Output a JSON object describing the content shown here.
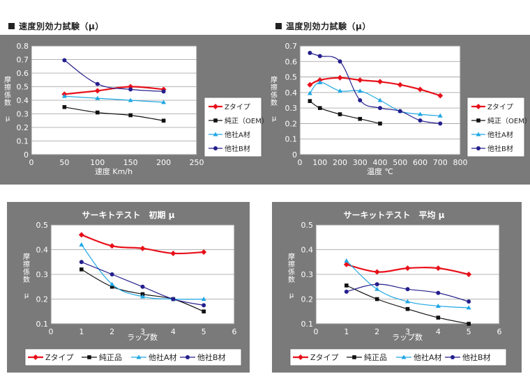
{
  "headers": {
    "speed": "速度別効力試験（μ）",
    "temp": "温度別効力試験（μ）"
  },
  "colors": {
    "z": "#e8101a",
    "oem": "#111111",
    "a": "#1fa7e3",
    "b": "#241f8c",
    "panel_bg": "#7a7a7a",
    "axis_text": "#ffffff"
  },
  "chart_data": [
    {
      "id": "speed",
      "type": "line",
      "title": "",
      "xlabel": "速度 Km/h",
      "ylabel": [
        "摩",
        "擦",
        "係",
        "数",
        "",
        "μ"
      ],
      "xlim": [
        0,
        250
      ],
      "ylim": [
        0,
        0.8
      ],
      "xticks": [
        0,
        50,
        100,
        150,
        200,
        250
      ],
      "yticks": [
        0,
        0.1,
        0.2,
        0.3,
        0.4,
        0.5,
        0.6,
        0.7,
        0.8
      ],
      "xtick_labels": [
        "0",
        "50",
        "100",
        "150",
        "200",
        "250"
      ],
      "ytick_labels": [
        "0",
        "0.1",
        "0.2",
        "0.3",
        "0.4",
        "0.5",
        "0.6",
        "0.7",
        "0.8"
      ],
      "legend_position": "right",
      "series": [
        {
          "key": "z",
          "name": "Zタイプ",
          "x": [
            50,
            100,
            150,
            200
          ],
          "values": [
            0.445,
            0.47,
            0.5,
            0.48
          ]
        },
        {
          "key": "oem",
          "name": "純正（OEM）",
          "x": [
            50,
            100,
            150,
            200
          ],
          "values": [
            0.35,
            0.31,
            0.29,
            0.25
          ]
        },
        {
          "key": "a",
          "name": "他社A材",
          "x": [
            50,
            100,
            150,
            200
          ],
          "values": [
            0.43,
            0.415,
            0.4,
            0.385
          ]
        },
        {
          "key": "b",
          "name": "他社B材",
          "x": [
            50,
            100,
            150,
            200
          ],
          "values": [
            0.695,
            0.52,
            0.48,
            0.465
          ]
        }
      ]
    },
    {
      "id": "temp",
      "type": "line",
      "title": "",
      "xlabel": "温度 ℃",
      "ylabel": [
        "摩",
        "擦",
        "係",
        "数",
        "",
        "μ"
      ],
      "xlim": [
        0,
        800
      ],
      "ylim": [
        0,
        0.7
      ],
      "xticks": [
        0,
        100,
        200,
        300,
        400,
        500,
        600,
        700,
        800
      ],
      "yticks": [
        0,
        0.1,
        0.2,
        0.3,
        0.4,
        0.5,
        0.6,
        0.7
      ],
      "xtick_labels": [
        "0",
        "100",
        "200",
        "300",
        "400",
        "500",
        "600",
        "700",
        "800"
      ],
      "ytick_labels": [
        "0",
        "0.1",
        "0.2",
        "0.3",
        "0.4",
        "0.5",
        "0.6",
        "0.7"
      ],
      "legend_position": "right",
      "series": [
        {
          "key": "z",
          "name": "Zタイプ",
          "x": [
            50,
            100,
            200,
            300,
            400,
            500,
            600,
            700
          ],
          "values": [
            0.45,
            0.48,
            0.495,
            0.48,
            0.47,
            0.45,
            0.42,
            0.38
          ]
        },
        {
          "key": "oem",
          "name": "純正（OEM）",
          "x": [
            50,
            100,
            200,
            300,
            400
          ],
          "values": [
            0.345,
            0.3,
            0.26,
            0.23,
            0.2
          ]
        },
        {
          "key": "a",
          "name": "他社A材",
          "x": [
            50,
            100,
            200,
            300,
            400,
            500,
            600,
            700
          ],
          "values": [
            0.395,
            0.465,
            0.41,
            0.41,
            0.35,
            0.28,
            0.26,
            0.25
          ]
        },
        {
          "key": "b",
          "name": "他社B材",
          "x": [
            50,
            100,
            200,
            300,
            400,
            500,
            600,
            700
          ],
          "values": [
            0.655,
            0.635,
            0.6,
            0.35,
            0.3,
            0.28,
            0.22,
            0.2
          ]
        }
      ]
    },
    {
      "id": "circuit-initial",
      "type": "line",
      "title": "サーキトテスト　初期 μ",
      "xlabel": "ラップ数",
      "ylabel": [
        "摩",
        "擦",
        "係",
        "数",
        "",
        "μ"
      ],
      "xlim": [
        0,
        6
      ],
      "ylim": [
        0.1,
        0.5
      ],
      "xticks": [
        0,
        1,
        2,
        3,
        4,
        5,
        6
      ],
      "yticks": [
        0.1,
        0.2,
        0.3,
        0.4,
        0.5
      ],
      "xtick_labels": [
        "0",
        "1",
        "2",
        "3",
        "4",
        "5",
        "6"
      ],
      "ytick_labels": [
        "0.1",
        "0.2",
        "0.3",
        "0.4",
        "0.5"
      ],
      "legend_position": "bottom",
      "series": [
        {
          "key": "z",
          "name": "Zタイプ",
          "x": [
            1,
            2,
            3,
            4,
            5
          ],
          "values": [
            0.46,
            0.415,
            0.405,
            0.385,
            0.39
          ]
        },
        {
          "key": "oem",
          "name": "純正品",
          "x": [
            1,
            2,
            3,
            4,
            5
          ],
          "values": [
            0.32,
            0.25,
            0.22,
            0.2,
            0.15
          ]
        },
        {
          "key": "a",
          "name": "他社A材",
          "x": [
            1,
            2,
            3,
            4,
            5
          ],
          "values": [
            0.42,
            0.26,
            0.21,
            0.2,
            0.2
          ]
        },
        {
          "key": "b",
          "name": "他社B材",
          "x": [
            1,
            2,
            3,
            4,
            5
          ],
          "values": [
            0.35,
            0.3,
            0.25,
            0.2,
            0.175
          ]
        }
      ]
    },
    {
      "id": "circuit-average",
      "type": "line",
      "title": "サーキットテスト　平均 μ",
      "xlabel": "ラップ数",
      "ylabel": [
        "摩",
        "擦",
        "係",
        "数",
        "",
        "μ"
      ],
      "xlim": [
        0,
        6
      ],
      "ylim": [
        0.1,
        0.5
      ],
      "xticks": [
        0,
        1,
        2,
        3,
        4,
        5,
        6
      ],
      "yticks": [
        0.1,
        0.2,
        0.3,
        0.4,
        0.5
      ],
      "xtick_labels": [
        "0",
        "1",
        "2",
        "3",
        "4",
        "5",
        "6"
      ],
      "ytick_labels": [
        "0.1",
        "0.2",
        "0.3",
        "0.4",
        "0.5"
      ],
      "legend_position": "bottom",
      "series": [
        {
          "key": "z",
          "name": "Zタイプ",
          "x": [
            1,
            2,
            3,
            4,
            5
          ],
          "values": [
            0.34,
            0.31,
            0.325,
            0.325,
            0.3
          ]
        },
        {
          "key": "oem",
          "name": "純正品",
          "x": [
            1,
            2,
            3,
            4,
            5
          ],
          "values": [
            0.255,
            0.2,
            0.16,
            0.125,
            0.1
          ]
        },
        {
          "key": "a",
          "name": "他社A材",
          "x": [
            1,
            2,
            3,
            4,
            5
          ],
          "values": [
            0.355,
            0.24,
            0.19,
            0.172,
            0.165
          ]
        },
        {
          "key": "b",
          "name": "他社B材",
          "x": [
            1,
            2,
            3,
            4,
            5
          ],
          "values": [
            0.23,
            0.26,
            0.24,
            0.225,
            0.19
          ]
        }
      ]
    }
  ]
}
